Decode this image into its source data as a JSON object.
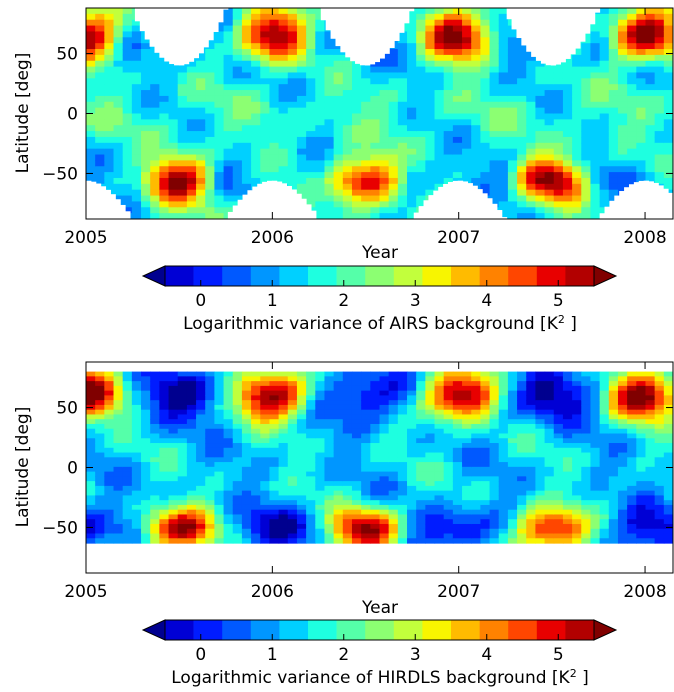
{
  "chart_data": [
    {
      "type": "heatmap",
      "xlabel": "Year",
      "ylabel": "Latitude [deg]",
      "xlim": [
        2005.0,
        2008.15
      ],
      "ylim": [
        -88,
        88
      ],
      "x_ticks": [
        2005,
        2006,
        2007,
        2008
      ],
      "x_tick_labels": [
        "2005",
        "2006",
        "2007",
        "2008"
      ],
      "y_ticks": [
        -50,
        0,
        50
      ],
      "y_tick_labels": [
        "−50",
        "0",
        "50"
      ],
      "data_lat_range": [
        -88,
        88
      ],
      "colorbar": {
        "label": "Logarithmic variance of AIRS background [K",
        "label_sup": "2",
        "label_end": " ]",
        "range": [
          -0.5,
          5.5
        ],
        "ticks": [
          0,
          1,
          2,
          3,
          4,
          5
        ],
        "tick_labels": [
          "0",
          "1",
          "2",
          "3",
          "4",
          "5"
        ],
        "extend": "both"
      }
    },
    {
      "type": "heatmap",
      "xlabel": "Year",
      "ylabel": "Latitude [deg]",
      "xlim": [
        2005.0,
        2008.15
      ],
      "ylim": [
        -88,
        88
      ],
      "x_ticks": [
        2005,
        2006,
        2007,
        2008
      ],
      "x_tick_labels": [
        "2005",
        "2006",
        "2007",
        "2008"
      ],
      "y_ticks": [
        -50,
        0,
        50
      ],
      "y_tick_labels": [
        "−50",
        "0",
        "50"
      ],
      "data_lat_range": [
        -63,
        80
      ],
      "colorbar": {
        "label": "Logarithmic variance of HIRDLS background [K",
        "label_sup": "2",
        "label_end": " ]",
        "range": [
          -0.5,
          5.5
        ],
        "ticks": [
          0,
          1,
          2,
          3,
          4,
          5
        ],
        "tick_labels": [
          "0",
          "1",
          "2",
          "3",
          "4",
          "5"
        ],
        "extend": "both"
      }
    }
  ],
  "colormap": [
    "#00008f",
    "#0000d5",
    "#001cff",
    "#0059ff",
    "#0096ff",
    "#00d0ff",
    "#1effe0",
    "#55ffa9",
    "#8cff72",
    "#c2ff3c",
    "#f8f500",
    "#ffbb00",
    "#ff8200",
    "#ff4600",
    "#e80000",
    "#b20000",
    "#800000"
  ]
}
